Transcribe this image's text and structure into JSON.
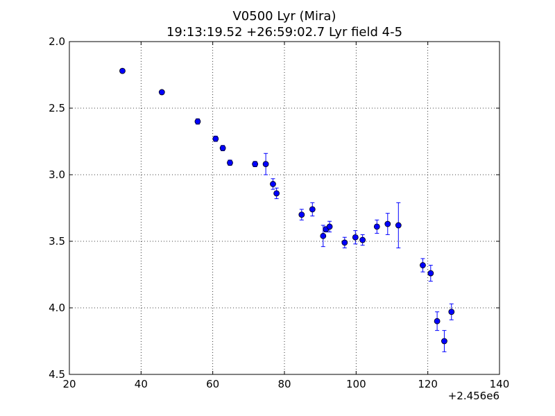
{
  "chart_data": {
    "type": "scatter",
    "title": "V0500 Lyr (Mira)",
    "subtitle": "19:13:19.52 +26:59:02.7 Lyr field 4-5",
    "xlabel": "",
    "ylabel": "",
    "x_offset_label": "+2.456e6",
    "xlim": [
      20,
      140
    ],
    "ylim": [
      4.5,
      2.0
    ],
    "y_inverted": true,
    "grid": true,
    "x_ticks": [
      20,
      40,
      60,
      80,
      100,
      120,
      140
    ],
    "y_ticks": [
      2.0,
      2.5,
      3.0,
      3.5,
      4.0,
      4.5
    ],
    "x_tick_labels": [
      "20",
      "40",
      "60",
      "80",
      "100",
      "120",
      "140"
    ],
    "y_tick_labels": [
      "2.0",
      "2.5",
      "3.0",
      "3.5",
      "4.0",
      "4.5"
    ],
    "marker_color": "#0000ff",
    "points": [
      {
        "x": 34.8,
        "y": 2.22,
        "err": 0.0
      },
      {
        "x": 45.8,
        "y": 2.38,
        "err": 0.0
      },
      {
        "x": 55.8,
        "y": 2.6,
        "err": 0.02
      },
      {
        "x": 60.8,
        "y": 2.73,
        "err": 0.02
      },
      {
        "x": 62.8,
        "y": 2.8,
        "err": 0.02
      },
      {
        "x": 64.8,
        "y": 2.91,
        "err": 0.02
      },
      {
        "x": 71.8,
        "y": 2.92,
        "err": 0.02
      },
      {
        "x": 74.8,
        "y": 2.92,
        "err": 0.08
      },
      {
        "x": 76.8,
        "y": 3.07,
        "err": 0.04
      },
      {
        "x": 77.8,
        "y": 3.14,
        "err": 0.04
      },
      {
        "x": 84.8,
        "y": 3.3,
        "err": 0.04
      },
      {
        "x": 87.8,
        "y": 3.26,
        "err": 0.05
      },
      {
        "x": 90.8,
        "y": 3.46,
        "err": 0.08
      },
      {
        "x": 91.6,
        "y": 3.41,
        "err": 0.02
      },
      {
        "x": 92.6,
        "y": 3.39,
        "err": 0.04
      },
      {
        "x": 96.8,
        "y": 3.51,
        "err": 0.04
      },
      {
        "x": 99.8,
        "y": 3.47,
        "err": 0.05
      },
      {
        "x": 101.8,
        "y": 3.49,
        "err": 0.04
      },
      {
        "x": 105.8,
        "y": 3.39,
        "err": 0.05
      },
      {
        "x": 108.8,
        "y": 3.37,
        "err": 0.08
      },
      {
        "x": 111.8,
        "y": 3.38,
        "err": 0.17
      },
      {
        "x": 118.6,
        "y": 3.68,
        "err": 0.05
      },
      {
        "x": 120.8,
        "y": 3.74,
        "err": 0.06
      },
      {
        "x": 122.6,
        "y": 4.1,
        "err": 0.07
      },
      {
        "x": 124.6,
        "y": 4.25,
        "err": 0.08
      },
      {
        "x": 126.6,
        "y": 4.03,
        "err": 0.06
      }
    ]
  }
}
